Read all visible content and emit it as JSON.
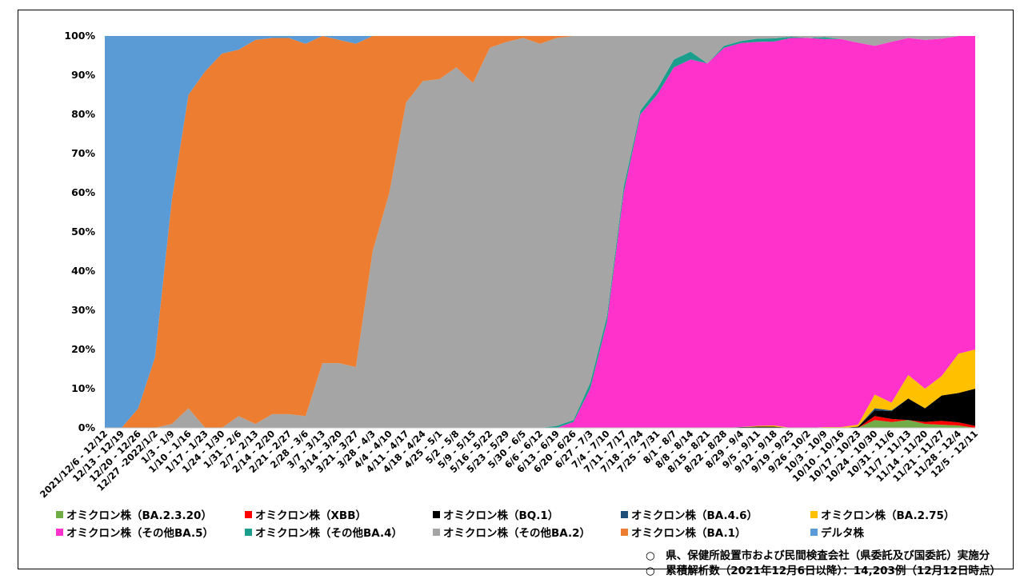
{
  "chart_data": {
    "type": "area",
    "stacked": true,
    "percent": true,
    "ylim": [
      0,
      100
    ],
    "yticks": [
      "0%",
      "10%",
      "20%",
      "30%",
      "40%",
      "50%",
      "60%",
      "70%",
      "80%",
      "90%",
      "100%"
    ],
    "grid": false,
    "legend_position": "bottom",
    "categories": [
      "2021/12/6 - 12/12",
      "12/13 - 12/19",
      "12/20 - 12/26",
      "12/27 -2022/1/2",
      "1/3 - 1/9",
      "1/10 - 1/16",
      "1/17 - 1/23",
      "1/24 - 1/30",
      "1/31 - 2/6",
      "2/7 - 2/13",
      "2/14 - 2/20",
      "2/21 - 2/27",
      "2/28 - 3/6",
      "3/7 - 3/13",
      "3/14 - 3/20",
      "3/21 - 3/27",
      "3/28 - 4/3",
      "4/4 - 4/10",
      "4/11 - 4/17",
      "4/18 - 4/24",
      "4/25 - 5/1",
      "5/2 - 5/8",
      "5/9 - 5/15",
      "5/16 - 5/22",
      "5/23 - 5/29",
      "5/30 - 6/5",
      "6/6 - 6/12",
      "6/13 - 6/19",
      "6/20 - 6/26",
      "6/27 - 7/3",
      "7/4 - 7/10",
      "7/11 - 7/17",
      "7/18 - 7/24",
      "7/25 - 7/31",
      "8/1 - 8/7",
      "8/8 - 8/14",
      "8/15 - 8/21",
      "8/22 - 8/28",
      "8/29 - 9/4",
      "9/5 - 9/11",
      "9/12 - 9/18",
      "9/19 - 9/25",
      "9/26 - 10/2",
      "10/3 - 10/9",
      "10/10 - 10/16",
      "10/17 - 10/23",
      "10/24 - 10/30",
      "10/31 - 11/6",
      "11/7 - 11/13",
      "11/14 - 11/20",
      "11/21 - 11/27",
      "11/28 - 12/4",
      "12/5 - 12/11"
    ],
    "series": [
      {
        "name": "オミクロン株（BA.2.3.20）",
        "color": "#70AD47",
        "values": [
          0,
          0,
          0,
          0,
          0,
          0,
          0,
          0,
          0,
          0,
          0,
          0,
          0,
          0,
          0,
          0,
          0,
          0,
          0,
          0,
          0,
          0,
          0,
          0,
          0,
          0,
          0,
          0,
          0,
          0,
          0,
          0,
          0,
          0,
          0,
          0,
          0,
          0,
          0,
          0,
          0,
          0,
          0,
          0,
          0,
          0,
          2,
          1.5,
          2,
          1,
          0.8,
          0.6,
          0
        ]
      },
      {
        "name": "オミクロン株（XBB）",
        "color": "#FF0000",
        "values": [
          0,
          0,
          0,
          0,
          0,
          0,
          0,
          0,
          0,
          0,
          0,
          0,
          0,
          0,
          0,
          0,
          0,
          0,
          0,
          0,
          0,
          0,
          0,
          0,
          0,
          0,
          0,
          0,
          0,
          0,
          0,
          0,
          0,
          0,
          0,
          0,
          0,
          0,
          0,
          0,
          0,
          0,
          0,
          0,
          0,
          0,
          1,
          0.8,
          0,
          0.5,
          1,
          0.8,
          0.5
        ]
      },
      {
        "name": "オミクロン株（BQ.1）",
        "color": "#000000",
        "values": [
          0,
          0,
          0,
          0,
          0,
          0,
          0,
          0,
          0,
          0,
          0,
          0,
          0,
          0,
          0,
          0,
          0,
          0,
          0,
          0,
          0,
          0,
          0,
          0,
          0,
          0,
          0,
          0,
          0,
          0,
          0,
          0,
          0,
          0,
          0,
          0,
          0,
          0,
          0.2,
          0.3,
          0.3,
          0,
          0,
          0,
          0,
          0.3,
          1.5,
          2,
          5.5,
          3.5,
          6.5,
          7.5,
          9.5
        ]
      },
      {
        "name": "オミクロン株（BA.4.6）",
        "color": "#1F4E79",
        "values": [
          0,
          0,
          0,
          0,
          0,
          0,
          0,
          0,
          0,
          0,
          0,
          0,
          0,
          0,
          0,
          0,
          0,
          0,
          0,
          0,
          0,
          0,
          0,
          0,
          0,
          0,
          0,
          0,
          0,
          0,
          0,
          0,
          0,
          0,
          0,
          0,
          0,
          0,
          0,
          0,
          0,
          0,
          0,
          0,
          0,
          0,
          0.5,
          0.2,
          0,
          0,
          0,
          0,
          0
        ]
      },
      {
        "name": "オミクロン株（BA.2.75）",
        "color": "#FFC000",
        "values": [
          0,
          0,
          0,
          0,
          0,
          0,
          0,
          0,
          0,
          0,
          0,
          0,
          0,
          0,
          0,
          0,
          0,
          0,
          0,
          0,
          0,
          0,
          0,
          0,
          0,
          0,
          0,
          0,
          0,
          0,
          0,
          0,
          0,
          0,
          0,
          0,
          0,
          0,
          0,
          0.2,
          0.3,
          0,
          0,
          0.2,
          0.2,
          0.5,
          3.5,
          2,
          6,
          5,
          5,
          10,
          10
        ]
      },
      {
        "name": "オミクロン株（その他BA.5）",
        "color": "#FF33CC",
        "values": [
          0,
          0,
          0,
          0,
          0,
          0,
          0,
          0,
          0,
          0,
          0,
          0,
          0,
          0,
          0,
          0,
          0,
          0,
          0,
          0,
          0,
          0,
          0,
          0,
          0,
          0,
          0,
          0,
          1.5,
          10,
          27,
          60,
          80,
          85,
          92,
          94,
          93,
          97,
          98,
          98,
          98,
          99.5,
          99.5,
          99,
          99,
          97,
          89,
          93,
          86,
          89,
          86.5,
          81,
          80
        ]
      },
      {
        "name": "オミクロン株（その他BA.4）",
        "color": "#1B9E8C",
        "values": [
          0,
          0,
          0,
          0,
          0,
          0,
          0,
          0,
          0,
          0,
          0,
          0,
          0,
          0,
          0,
          0,
          0,
          0,
          0,
          0,
          0,
          0,
          0,
          0,
          0,
          0,
          0,
          0.5,
          0.5,
          1.5,
          1.5,
          1.5,
          1,
          1.5,
          2,
          2,
          0,
          0.5,
          0.5,
          0.8,
          0.8,
          0.3,
          0,
          0.5,
          0,
          0,
          0,
          0,
          0,
          0,
          0,
          0,
          0
        ]
      },
      {
        "name": "オミクロン株（その他BA.2）",
        "color": "#A5A5A5",
        "values": [
          0,
          0,
          0,
          0,
          1,
          5,
          0,
          0,
          3,
          1,
          3.5,
          3.5,
          3,
          16.5,
          16.5,
          15.5,
          45,
          60,
          83,
          88.5,
          89,
          92,
          88,
          97,
          98.5,
          99.5,
          98,
          99,
          98,
          88.5,
          71.5,
          38.5,
          19,
          13.5,
          6,
          4,
          7,
          2.5,
          1.3,
          0.7,
          0.6,
          0.2,
          0.5,
          0.3,
          0.8,
          1.7,
          2.5,
          1.5,
          0.5,
          1,
          0.7,
          0,
          0
        ]
      },
      {
        "name": "オミクロン株（BA.1）",
        "color": "#ED7D31",
        "values": [
          0,
          0,
          5,
          18,
          57,
          80,
          91,
          95.5,
          93.5,
          98,
          96,
          96,
          95,
          83.5,
          82.5,
          82.5,
          55,
          40,
          17,
          11.5,
          11,
          8,
          12,
          3,
          1.5,
          0.5,
          2,
          0.5,
          0,
          0,
          0,
          0,
          0,
          0,
          0,
          0,
          0,
          0,
          0,
          0,
          0,
          0,
          0,
          0,
          0,
          0,
          0,
          0,
          0,
          0,
          0,
          0,
          0
        ]
      },
      {
        "name": "デルタ株",
        "color": "#5B9BD5",
        "values": [
          100,
          100,
          95,
          82,
          42,
          15,
          9,
          4.5,
          3.5,
          1,
          0.5,
          0.5,
          2,
          0,
          1,
          2,
          0,
          0,
          0,
          0,
          0,
          0,
          0,
          0,
          0,
          0,
          0,
          0,
          0,
          0,
          0,
          0,
          0,
          0,
          0,
          0,
          0,
          0,
          0,
          0,
          0,
          0,
          0,
          0,
          0,
          0,
          0,
          0,
          0,
          0,
          0,
          0,
          0
        ]
      }
    ]
  },
  "legend": {
    "items": [
      {
        "label": "オミクロン株（BA.2.3.20）",
        "color": "#70AD47"
      },
      {
        "label": "オミクロン株（XBB）",
        "color": "#FF0000"
      },
      {
        "label": "オミクロン株（BQ.1）",
        "color": "#000000"
      },
      {
        "label": "オミクロン株（BA.4.6）",
        "color": "#1F4E79"
      },
      {
        "label": "オミクロン株（BA.2.75）",
        "color": "#FFC000"
      },
      {
        "label": "オミクロン株（その他BA.5）",
        "color": "#FF33CC"
      },
      {
        "label": "オミクロン株（その他BA.4）",
        "color": "#1B9E8C"
      },
      {
        "label": "オミクロン株（その他BA.2）",
        "color": "#A5A5A5"
      },
      {
        "label": "オミクロン株（BA.1）",
        "color": "#ED7D31"
      },
      {
        "label": "デルタ株",
        "color": "#5B9BD5"
      }
    ]
  },
  "notes": {
    "line1": "○　県、保健所設置市および民間検査会社（県委託及び国委託）実施分",
    "line2": "○　累積解析数（2021年12月6日以降）：14,203例（12月12日時点）"
  }
}
